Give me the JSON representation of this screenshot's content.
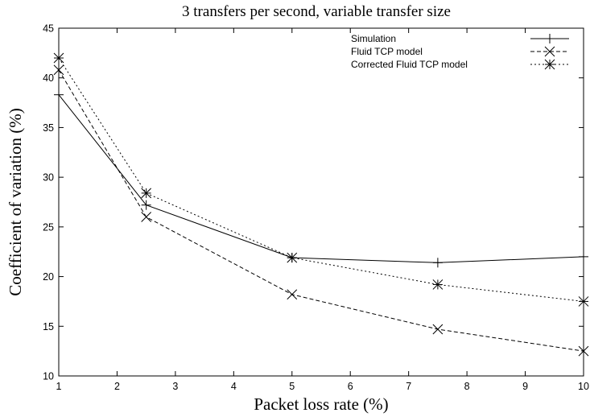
{
  "chart_data": {
    "type": "line",
    "title": "3 transfers per second, variable transfer size",
    "xlabel": "Packet loss rate (%)",
    "ylabel": "Coefficient of variation (%)",
    "xlim": [
      1,
      10
    ],
    "ylim": [
      10,
      45
    ],
    "xticks": [
      1,
      2,
      3,
      4,
      5,
      6,
      7,
      8,
      9,
      10
    ],
    "yticks": [
      10,
      15,
      20,
      25,
      30,
      35,
      40,
      45
    ],
    "grid": false,
    "legend_position": "top-right",
    "series": [
      {
        "name": "Simulation",
        "marker": "plus",
        "dash": "solid",
        "x": [
          1,
          2.5,
          5,
          7.5,
          10
        ],
        "y": [
          38.3,
          27.2,
          21.9,
          21.4,
          22.0
        ]
      },
      {
        "name": "Fluid TCP model",
        "marker": "cross",
        "dash": "dashed",
        "x": [
          1,
          2.5,
          5,
          7.5,
          10
        ],
        "y": [
          40.8,
          26.0,
          18.2,
          14.7,
          12.5
        ]
      },
      {
        "name": "Corrected Fluid TCP model",
        "marker": "star",
        "dash": "dotted",
        "x": [
          1,
          2.5,
          5,
          7.5,
          10
        ],
        "y": [
          42.0,
          28.4,
          21.9,
          19.2,
          17.5
        ]
      }
    ]
  }
}
